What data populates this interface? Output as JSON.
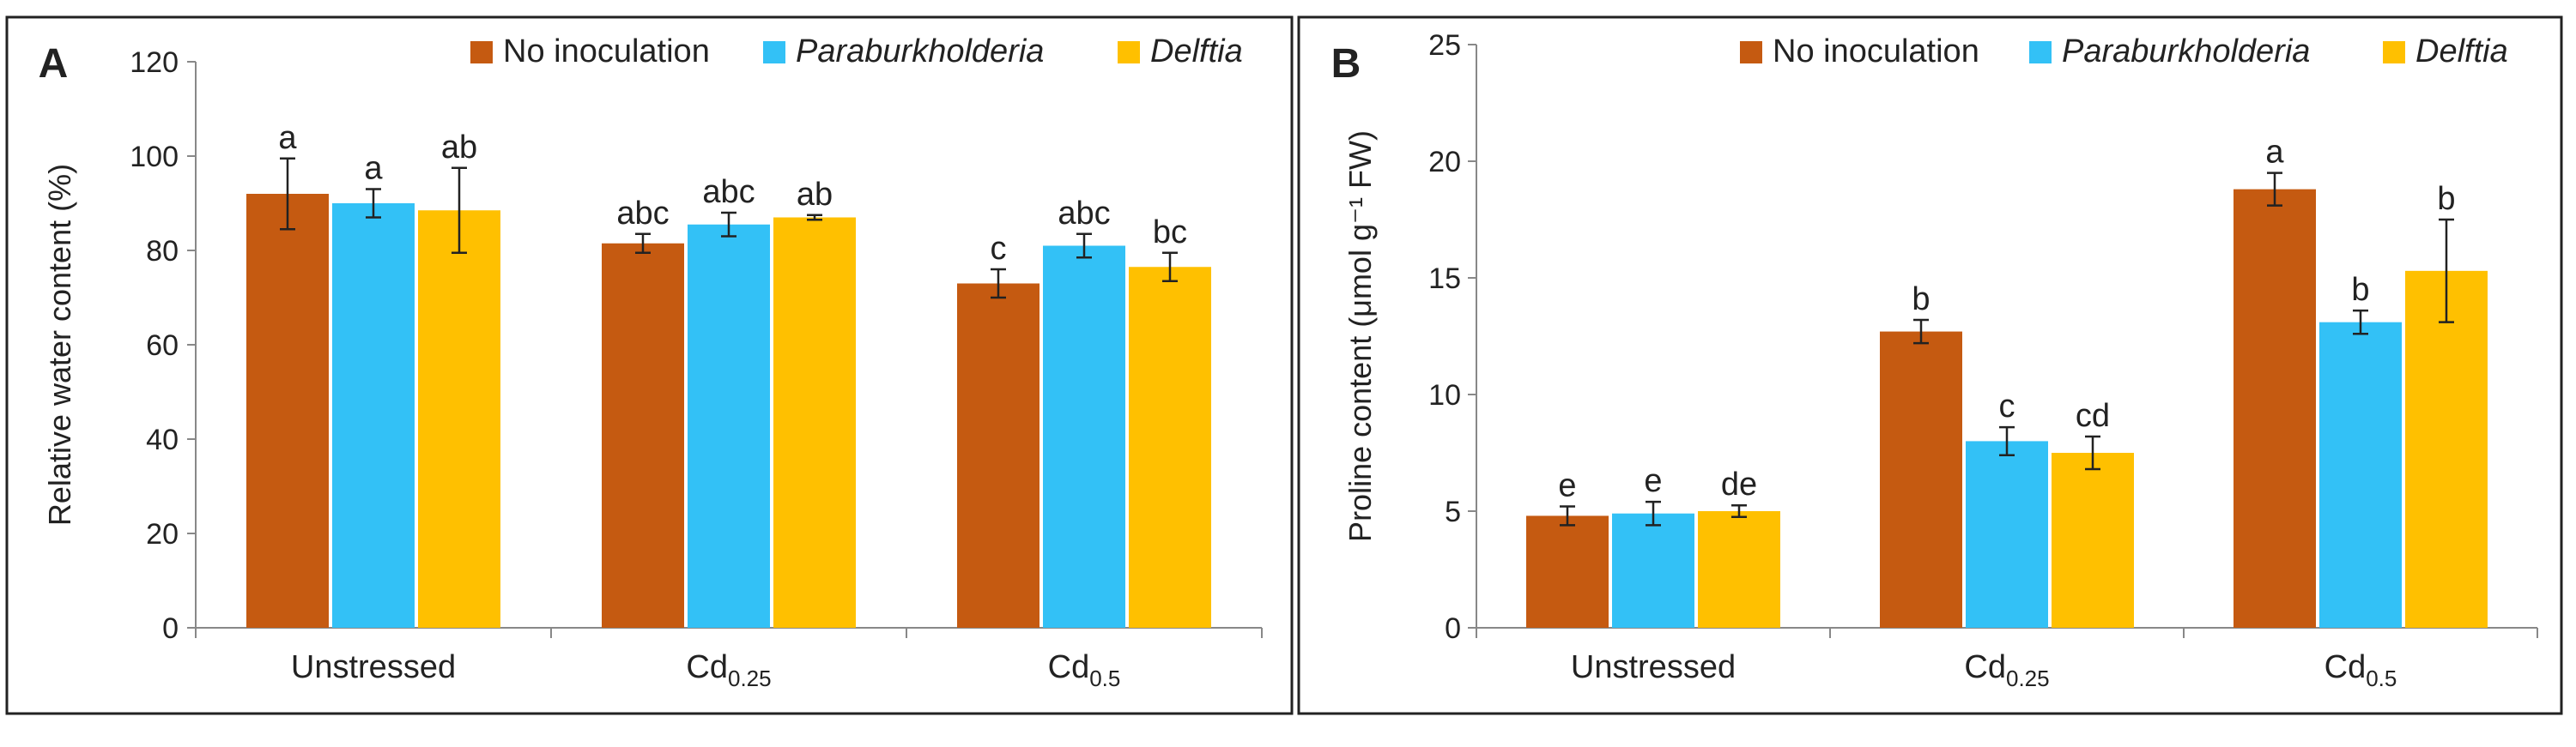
{
  "figure": {
    "colors": [
      "#C55A11",
      "#33C1F6",
      "#FFC000"
    ],
    "legend": [
      "No inoculation",
      "Paraburkholderia",
      "Delftia"
    ],
    "legend_italic": [
      false,
      true,
      true
    ]
  },
  "chart_data": [
    {
      "panel": "A",
      "type": "bar",
      "title": "",
      "xlabel": "",
      "ylabel": "Relative water content (%)",
      "ylim": [
        0,
        120
      ],
      "yticks": [
        0,
        20,
        40,
        60,
        80,
        100,
        120
      ],
      "categories": [
        {
          "main": "Unstressed",
          "sub": ""
        },
        {
          "main": "Cd",
          "sub": "0.25"
        },
        {
          "main": "Cd",
          "sub": "0.5"
        }
      ],
      "series": [
        {
          "name": "No inoculation",
          "values": [
            92,
            81.5,
            73
          ],
          "errors": [
            7.5,
            2,
            3
          ],
          "letters": [
            "a",
            "abc",
            "c"
          ]
        },
        {
          "name": "Paraburkholderia",
          "values": [
            90,
            85.5,
            81
          ],
          "errors": [
            3,
            2.5,
            2.5
          ],
          "letters": [
            "a",
            "abc",
            "abc"
          ]
        },
        {
          "name": "Delftia",
          "values": [
            88.5,
            87,
            76.5
          ],
          "errors": [
            9,
            0.5,
            3
          ],
          "letters": [
            "ab",
            "ab",
            "bc"
          ]
        }
      ]
    },
    {
      "panel": "B",
      "type": "bar",
      "title": "",
      "xlabel": "",
      "ylabel": "Proline content (μmol g⁻¹ FW)",
      "ylim": [
        0,
        25
      ],
      "yticks": [
        0,
        5,
        10,
        15,
        20,
        25
      ],
      "categories": [
        {
          "main": "Unstressed",
          "sub": ""
        },
        {
          "main": "Cd",
          "sub": "0.25"
        },
        {
          "main": "Cd",
          "sub": "0.5"
        }
      ],
      "series": [
        {
          "name": "No inoculation",
          "values": [
            4.8,
            12.7,
            18.8
          ],
          "errors": [
            0.4,
            0.5,
            0.7
          ],
          "letters": [
            "e",
            "b",
            "a"
          ]
        },
        {
          "name": "Paraburkholderia",
          "values": [
            4.9,
            8.0,
            13.1
          ],
          "errors": [
            0.5,
            0.6,
            0.5
          ],
          "letters": [
            "e",
            "c",
            "b"
          ]
        },
        {
          "name": "Delftia",
          "values": [
            5.0,
            7.5,
            15.3
          ],
          "errors": [
            0.25,
            0.7,
            2.2
          ],
          "letters": [
            "de",
            "cd",
            "b"
          ]
        }
      ]
    }
  ]
}
